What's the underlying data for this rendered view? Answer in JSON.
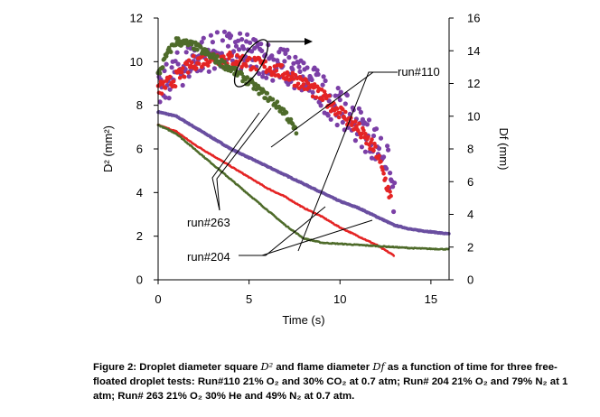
{
  "chart_data": {
    "type": "scatter",
    "xlabel": "Time (s)",
    "ylabel_left": "D² (mm²)",
    "ylabel_right": "Df (mm)",
    "xlim": [
      0,
      16
    ],
    "ylim_left": [
      0,
      12
    ],
    "ylim_right": [
      0,
      16
    ],
    "x_ticks": [
      "0",
      "5",
      "10",
      "15"
    ],
    "y_left_ticks": [
      "0",
      "2",
      "4",
      "6",
      "8",
      "10",
      "12"
    ],
    "y_right_ticks": [
      "0",
      "2",
      "4",
      "6",
      "8",
      "10",
      "12",
      "14",
      "16"
    ],
    "grid": false,
    "colors": {
      "run110": "#7b3fa6",
      "run204": "#e42424",
      "run263": "#4e6b2a",
      "run110_line": "#6a4fa0",
      "run204_line": "#e42424",
      "run263_line": "#4e6b2a"
    },
    "series": [
      {
        "name": "run#110",
        "axis": "left",
        "kind": "D2",
        "x": [
          0,
          1,
          2,
          3,
          4,
          5,
          6,
          7,
          8,
          9,
          10,
          11,
          12,
          13,
          14,
          15,
          16
        ],
        "y": [
          7.7,
          7.5,
          7.0,
          6.5,
          6.0,
          5.6,
          5.2,
          4.8,
          4.4,
          4.0,
          3.6,
          3.3,
          2.9,
          2.5,
          2.3,
          2.2,
          2.1
        ]
      },
      {
        "name": "run#204",
        "axis": "left",
        "kind": "D2",
        "x": [
          0,
          1,
          2,
          3,
          4,
          5,
          6,
          7,
          8,
          9,
          10,
          11,
          12,
          13
        ],
        "y": [
          7.1,
          6.8,
          6.2,
          5.7,
          5.2,
          4.7,
          4.2,
          3.8,
          3.3,
          2.9,
          2.4,
          2.0,
          1.6,
          1.1
        ]
      },
      {
        "name": "run#263",
        "axis": "left",
        "kind": "D2",
        "x": [
          0,
          1,
          2,
          3,
          4,
          5,
          6,
          7,
          8,
          9,
          10,
          11,
          12,
          13,
          14,
          15,
          16
        ],
        "y": [
          7.1,
          6.7,
          6.0,
          5.3,
          4.6,
          3.9,
          3.2,
          2.5,
          1.9,
          1.7,
          1.65,
          1.6,
          1.55,
          1.5,
          1.45,
          1.42,
          1.4
        ]
      },
      {
        "name": "run#110",
        "axis": "right",
        "kind": "Df",
        "x": [
          0,
          1,
          2,
          3,
          4,
          5,
          6,
          7,
          8,
          9,
          10,
          11,
          12,
          12.5,
          13
        ],
        "y": [
          11.5,
          12.7,
          13.6,
          14.0,
          14.0,
          13.8,
          13.5,
          13.0,
          12.4,
          11.5,
          10.5,
          9.5,
          8.3,
          7.6,
          4.9
        ]
      },
      {
        "name": "run#204",
        "axis": "right",
        "kind": "Df",
        "x": [
          0,
          1,
          2,
          3,
          4,
          5,
          6,
          7,
          8,
          9,
          10,
          11,
          12,
          12.8
        ],
        "y": [
          11.6,
          12.3,
          13.3,
          13.6,
          13.5,
          13.3,
          13.0,
          12.6,
          12.0,
          11.2,
          10.3,
          9.2,
          7.8,
          5.0
        ]
      },
      {
        "name": "run#263",
        "axis": "right",
        "kind": "Df",
        "x": [
          0,
          0.5,
          1,
          2,
          3,
          4,
          5,
          6,
          7,
          7.6
        ],
        "y": [
          12.5,
          13.8,
          14.6,
          14.3,
          13.6,
          12.9,
          12.1,
          11.2,
          10.2,
          9.0
        ]
      }
    ],
    "annotations": [
      "run#110",
      "run#263",
      "run#204"
    ]
  },
  "caption": {
    "lead": "Figure 2: Droplet diameter square ",
    "sym1": "D²",
    "mid": " and flame diameter ",
    "sym2": "Df",
    "rest": " as a function of time for three free-floated droplet tests: Run#110 21% O₂ and 30% CO₂ at 0.7 atm; Run# 204 21% O₂ and 79% N₂ at 1 atm; Run# 263 21% O₂ 30% He and 49% N₂ at 0.7 atm."
  }
}
